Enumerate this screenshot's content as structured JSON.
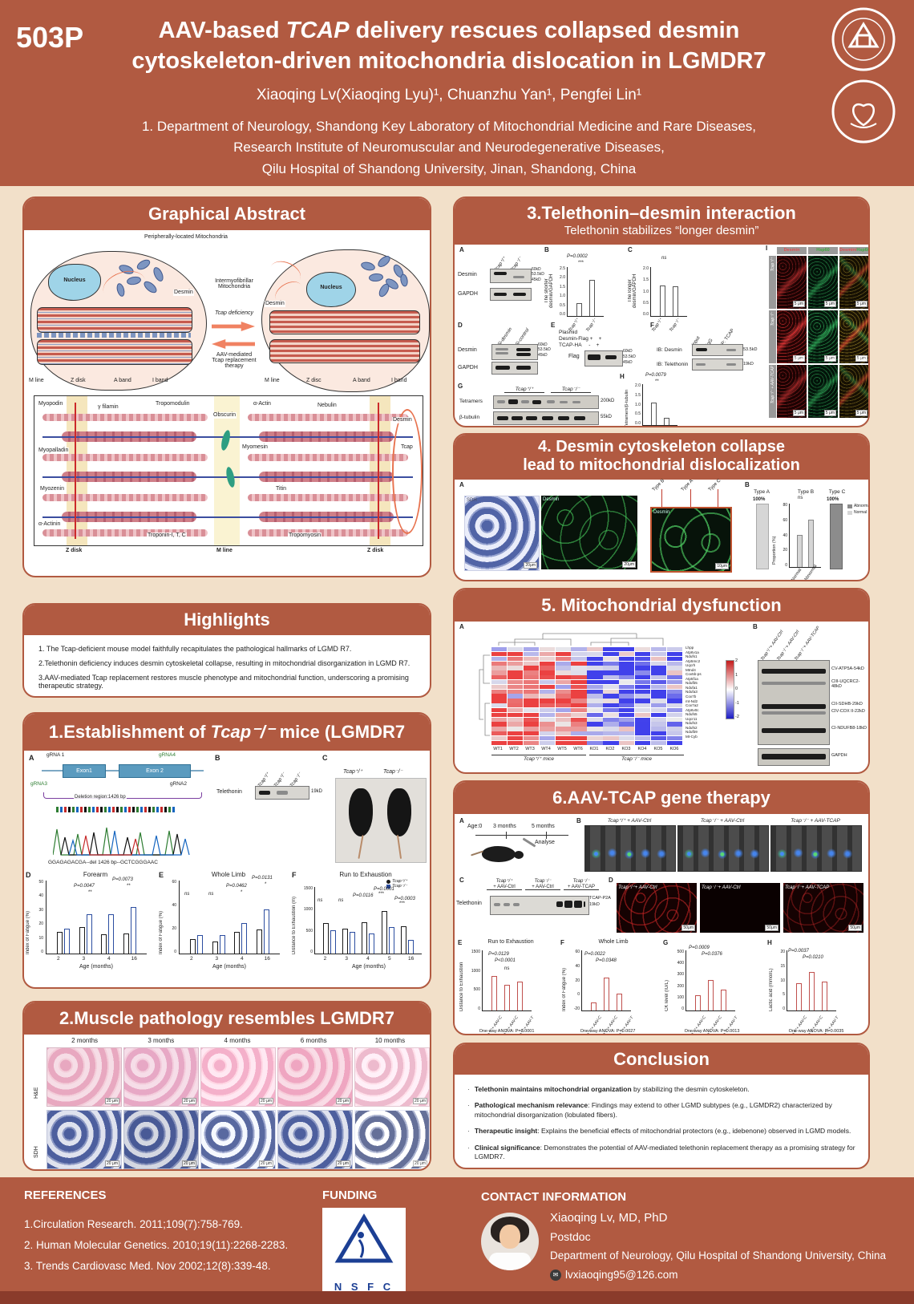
{
  "header": {
    "poster_id": "503P",
    "title_pre": "AAV-based ",
    "title_gene": "TCAP",
    "title_post": " delivery rescues collapsed desmin",
    "title_line2": "cytoskeleton-driven mitochondria dislocation in LGMDR7",
    "authors": "Xiaoqing Lv(Xiaoqing Lyu)¹, Chuanzhu Yan¹, Pengfei Lin¹",
    "affil1": "1. Department of Neurology, Shandong Key Laboratory of Mitochondrial Medicine and Rare Diseases,",
    "affil2": "Research Institute of Neuromuscular and Neurodegenerative Diseases,",
    "affil3": "Qilu Hospital of Shandong University, Jinan, Shandong, China"
  },
  "colors": {
    "accent": "#b15a41",
    "page_bg": "#f2e0c9",
    "wt_series": "#1a1a1a",
    "ko_series": "#2b4da0",
    "therapy_red": "#c0504d"
  },
  "ga": {
    "title": "Graphical Abstract",
    "peripheral": "Peripherally-located Mitochondria",
    "nucleus_left": "Nucleus",
    "desmin_left": "Desmin",
    "intermyo": "Intermyofibrillar\nMitochondria",
    "arrow_right": "Tcap deficiency",
    "arrow_left": "AAV-mediated\nTcap replacement\ntherapy",
    "mline_l": "M line",
    "zdisk_l": "Z disk",
    "aband_l": "A band",
    "iband_l": "I band",
    "desmin_r": "Desmin",
    "nucleus_r": "Nucleus",
    "mline_r": "M line",
    "zdisc_r": "Z disc",
    "aband_r": "A band",
    "iband_r": "I band",
    "sarc": {
      "myopodin": "Myopodin",
      "gfilamin": "γ filamin",
      "tropomodulin": "Tropomodulin",
      "obscurin": "Obscurin",
      "aactin": "α-Actin",
      "nebulin": "Nebulin",
      "desmin": "Desmin",
      "tcap": "Tcap",
      "myopalladin": "Myopalladin",
      "myomesin": "Myomesin",
      "myozenin": "Myozenin",
      "titin": "Titin",
      "aactinin": "α-Actinin",
      "troponin": "Troponin-I, T, C",
      "tropomyosin": "Tropomyosin",
      "zdisk_left": "Z disk",
      "mline": "M line",
      "zdisk_right": "Z disk"
    }
  },
  "highlights": {
    "title": "Highlights",
    "items": [
      "1. The Tcap-deficient mouse model faithfully recapitulates the pathological hallmarks of LGMD R7.",
      "2.Telethonin deficiency induces desmin cytoskeletal collapse, resulting in mitochondrial disorganization in LGMD R7.",
      "3.AAV-mediated Tcap replacement restores muscle phenotype and mitochondrial function, underscoring a promising therapeutic strategy."
    ]
  },
  "s1": {
    "title_pre": "1.Establishment of ",
    "title_gene": "Tcap⁻/⁻",
    "title_post": " mice (LGMDR7 model)",
    "a": {
      "label": "A",
      "grna1": "gRNA 1",
      "grna4": "gRNA4",
      "grna3": "gRNA3",
      "grna2": "gRNA2",
      "exon1": "Exon1",
      "exon2": "Exon 2",
      "deletion": "Deletion region:1426 bp",
      "seq": "GGAGAGACGA--del 1426 bp--GCTCGGGAAC"
    },
    "b": {
      "label": "B",
      "protein": "Telethonin",
      "lanes": [
        "Tcap⁺/⁺",
        "Tcap⁺/⁻",
        "Tcap⁻/⁻"
      ],
      "kd": "19kD"
    },
    "c": {
      "label": "C",
      "left": "Tcap⁺/⁺",
      "right": "Tcap⁻/⁻"
    },
    "d": {
      "label": "D",
      "title": "Forearm",
      "ylabel": "Index of Fatigue (%)",
      "yticks": [
        "50",
        "40",
        "30",
        "20",
        "10",
        "0"
      ],
      "p1": "P=0.0047",
      "st1": "**",
      "p2": "P=0.0073",
      "st2": "**",
      "xticks": [
        "2",
        "3",
        "4",
        "16"
      ],
      "xlabel": "Age (months)",
      "chart": {
        "ymax": 50,
        "groups": [
          [
            15,
            17
          ],
          [
            18,
            27
          ],
          [
            13,
            27
          ],
          [
            14,
            32
          ]
        ],
        "colors": [
          "#1a1a1a",
          "#2b4da0"
        ]
      }
    },
    "e": {
      "label": "E",
      "title": "Whole Limb",
      "ylabel": "Index of Fatigue (%)",
      "yticks": [
        "60",
        "40",
        "20",
        "0"
      ],
      "ns1": "ns",
      "ns2": "ns",
      "p1": "P=0.0462",
      "st1": "*",
      "p2": "P=0.0131",
      "st2": "*",
      "xticks": [
        "2",
        "3",
        "4",
        "16"
      ],
      "xlabel": "Age (months)",
      "chart": {
        "ymax": 60,
        "groups": [
          [
            12,
            15
          ],
          [
            10,
            15
          ],
          [
            18,
            25
          ],
          [
            20,
            36
          ]
        ],
        "colors": [
          "#1a1a1a",
          "#2b4da0"
        ]
      }
    },
    "f": {
      "label": "F",
      "title": "Run to Exhaustion",
      "ylabel": "Distance to Exhaustion (m)",
      "yticks": [
        "1500",
        "1000",
        "500",
        "0"
      ],
      "legend1": "Tcap⁺/⁺",
      "legend2": "Tcap⁻/⁻",
      "sigs": [
        "ns",
        "ns",
        "P=0.0116",
        "P=0.0001",
        "P=0.0003"
      ],
      "stars": [
        "",
        "",
        "*",
        "***",
        "***"
      ],
      "xticks": [
        "2",
        "3",
        "4",
        "5",
        "16"
      ],
      "xlabel": "Age (months)",
      "chart": {
        "ymax": 1500,
        "groups": [
          [
            680,
            530
          ],
          [
            560,
            490
          ],
          [
            700,
            450
          ],
          [
            950,
            600
          ],
          [
            620,
            300
          ]
        ],
        "colors": [
          "#1a1a1a",
          "#2b4da0"
        ]
      }
    }
  },
  "s2": {
    "title": "2.Muscle pathology resembles LGMDR7",
    "cols": [
      "2 months",
      "3 months",
      "4 months",
      "6 months",
      "10 months"
    ],
    "row1": "H&E",
    "row2": "SDH",
    "scale": "20 μm"
  },
  "s3": {
    "title": "3.Telethonin–desmin interaction",
    "subtitle": "Telethonin stabilizes “longer desmin”",
    "wt": "Tcap⁺/⁺",
    "ko": "Tcap⁻/⁻",
    "a": {
      "label": "A",
      "row1": "Desmin",
      "row2": "GAPDH",
      "m1": "60kD",
      "m2": "53.5kD",
      "m3": "45kD"
    },
    "b": {
      "label": "B",
      "ylabel": "The shorter\ndesmin/GAPDH",
      "yticks": [
        "2.5",
        "2.0",
        "1.5",
        "1.0",
        "0.5",
        "0.0"
      ],
      "p": "P=0.0002",
      "stars": "***",
      "chart": {
        "ymax": 2.5,
        "values": [
          0.65,
          1.85
        ],
        "colors": [
          "#555",
          "#555"
        ]
      }
    },
    "c": {
      "label": "C",
      "ylabel": "The longer\ndesmin/GAPDH",
      "yticks": [
        "2.0",
        "1.5",
        "1.0",
        "0.5",
        "0.0"
      ],
      "p": "ns",
      "chart": {
        "ymax": 2.0,
        "values": [
          1.25,
          1.2
        ],
        "colors": [
          "#555",
          "#555"
        ]
      }
    },
    "d": {
      "label": "D",
      "lane1": "Si-desmin",
      "lane2": "Si-control",
      "row1": "Desmin",
      "row2": "GAPDH",
      "m1": "60kD",
      "m2": "53.5kD",
      "m3": "45kD"
    },
    "e": {
      "label": "E",
      "l1": "Plasmid",
      "l2": "Desmin-Flag +    +",
      "l3": "TCAP-HA     -    +",
      "protein": "Flag",
      "m1": "60kD",
      "m2": "53.5kD",
      "m3": "45kD"
    },
    "f": {
      "label": "F",
      "lane1": "Input",
      "lane2": "IgG",
      "lane3": "IP: TCAP",
      "r1": "IB: Desmin",
      "k1": "53.5kD",
      "r2": "IB: Telethonin",
      "k2": "19kD"
    },
    "g": {
      "label": "G",
      "row1": "Tetramers",
      "row2": "β-tubulin",
      "kd1": "200kD",
      "kd2": "55kD"
    },
    "h": {
      "label": "H",
      "ylabel": "Tetramers/β-tubulin",
      "yticks": [
        "2.0",
        "1.5",
        "1.0",
        "0.5",
        "0.0"
      ],
      "p": "P=0.0079",
      "stars": "**",
      "chart": {
        "ymax": 2.0,
        "values": [
          1.1,
          0.35
        ],
        "colors": [
          "#555",
          "#555"
        ]
      }
    },
    "i": {
      "label": "I",
      "col1": "Desmin",
      "col2": "Hsp60",
      "col3a": "Desmin/",
      "col3b": "Hsp60",
      "rows": [
        "Tcap⁺/⁺",
        "Tcap⁻/⁻",
        "Tcap⁻/⁻ + AAV-TCAP"
      ],
      "scale": "5 μm"
    }
  },
  "s4": {
    "title1": "4. Desmin cytoskeleton collapse",
    "title2": "lead to mitochondrial dislocalization",
    "a": {
      "label": "A",
      "img1": "SDH",
      "img2": "Desmin",
      "img3": "Desmin",
      "typeB": "Type B",
      "typeA": "Type A",
      "typeC": "Type C",
      "scale1": "20μm",
      "scale2": "20μm",
      "scale3": "10μm"
    },
    "b": {
      "label": "B",
      "typeA": "Type A",
      "typeB": "Type B",
      "typeC": "Type C",
      "pctA": "100%",
      "pctC": "100%",
      "ylabel": "Proportion (%)",
      "yticks": [
        "80",
        "60",
        "40",
        "20",
        "0"
      ],
      "p": "ns",
      "x1": "Normal",
      "x2": "Abnormal",
      "legend1": "Abnormal",
      "legend2": "Normal",
      "chart": {
        "ymax": 80,
        "values": [
          41,
          60
        ],
        "colors": [
          "#888",
          "#555"
        ],
        "fills": [
          "#d6d6d6",
          "#8c8c8c"
        ]
      }
    }
  },
  "s5": {
    "title": "5. Mitochondrial dysfunction",
    "a": {
      "label": "A",
      "genes": [
        "Lhpp",
        "Atp6v1a",
        "Ndufs1",
        "Atp5mc2",
        "Uqcrh",
        "Mtnd4",
        "Cox5b-ps",
        "Atp5f1a",
        "Ndufb5",
        "Ndufa1",
        "Ndufa3",
        "Cox7b",
        "mt-Nd2",
        "Cox7a2",
        "Atp6v0c",
        "Ndufs5",
        "Uqcr11",
        "Ndufs3",
        "Ndufs2",
        "Ndufb9",
        "Mt-Cyb"
      ],
      "cols": [
        "WT1",
        "WT2",
        "WT3",
        "WT4",
        "WT5",
        "WT6",
        "KO1",
        "KO2",
        "KO3",
        "KO4",
        "KO5",
        "KO6"
      ],
      "scale": [
        "2",
        "1",
        "0",
        "-1",
        "-2"
      ],
      "wt_group": "Tcap⁺/⁺ mice",
      "ko_group": "Tcap⁻/⁻ mice"
    },
    "b": {
      "label": "B",
      "lanes": [
        "Tcap⁺/⁺+ AAV-Ctrl",
        "Tcap⁻/⁻+ AAV-Ctrl",
        "Tcap⁻/⁻+ AAV-TCAP"
      ],
      "bands": [
        "CV-ATP5A-54kD",
        "CIII-UQCRC2-48kD",
        "CII-SDHB-29kD",
        "CIV-COX II-22kD",
        "CI-NDUFB8-18kD",
        "GAPDH"
      ]
    }
  },
  "s6": {
    "title": "6.AAV-TCAP gene therapy",
    "a": {
      "label": "A",
      "age": "Age:0",
      "m3": "3 months",
      "m5": "5 months",
      "analyse": "Analyse"
    },
    "b": {
      "label": "B",
      "lanes": [
        "Tcap⁺/⁺ + AAV-Ctrl",
        "Tcap⁻/⁻ + AAV-Ctrl",
        "Tcap⁻/⁻ + AAV-TCAP"
      ]
    },
    "c": {
      "label": "C",
      "lane1a": "Tcap⁺/⁺",
      "lane1b": "+ AAV-Ctrl",
      "lane2a": "Tcap⁻/⁻",
      "lane2b": "+ AAV-Ctrl",
      "lane3a": "Tcap⁻/⁻",
      "lane3b": "+ AAV-TCAP",
      "protein": "Telethonin",
      "band1": "TCAP-P2A",
      "band2": "19kD"
    },
    "d": {
      "label": "D",
      "lanes": [
        "Tcap⁺/⁺+ AAV-Ctrl",
        "Tcap⁻/⁻+ AAV-Ctrl",
        "Tcap⁻/⁻+ AAV-TCAP"
      ],
      "scale": "50μm"
    },
    "e": {
      "label": "E",
      "title": "Run to Exhaustion",
      "ylabel": "Distance to Exhaustion",
      "yticks": [
        "1500",
        "1000",
        "500",
        "0"
      ],
      "p1": "P=0.0129",
      "st1": "*",
      "p2": "P<0.0001",
      "st2": "****",
      "ns": "ns",
      "chart": {
        "ymax": 1500,
        "values": [
          870,
          640,
          730
        ],
        "colors": [
          "#c0504d",
          "#cd7b72",
          "#c9b29b"
        ]
      }
    },
    "f": {
      "label": "F",
      "title": "Whole Limb",
      "ylabel": "Index of Fatigue (%)",
      "yticks": [
        "60",
        "40",
        "20",
        "0",
        "-20"
      ],
      "p1": "P=0.0022",
      "st1": "**",
      "p2": "P=0.0348",
      "st2": "*",
      "chart": {
        "ymax": 60,
        "values": [
          8,
          33,
          17
        ],
        "colors": [
          "#c0504d",
          "#cd7b72",
          "#c9b29b"
        ]
      }
    },
    "g": {
      "label": "G",
      "ylabel": "CK level (IU/L)",
      "yticks": [
        "500",
        "400",
        "300",
        "200",
        "100",
        "0"
      ],
      "p1": "P=0.0009",
      "st1": "***",
      "p2": "P=0.0376",
      "st2": "*",
      "chart": {
        "ymax": 500,
        "values": [
          125,
          255,
          175
        ],
        "colors": [
          "#c0504d",
          "#cd7b72",
          "#c9b29b"
        ]
      }
    },
    "h": {
      "label": "H",
      "ylabel": "Lactic acid (mmol/L)",
      "yticks": [
        "20",
        "15",
        "10",
        "5",
        "0"
      ],
      "p1": "P=0.0037",
      "st1": "**",
      "p2": "P=0.0210",
      "st2": "*",
      "chart": {
        "ymax": 20,
        "values": [
          9,
          12.8,
          9.5
        ],
        "colors": [
          "#c0504d",
          "#cd7b72",
          "#c9b29b"
        ]
      }
    },
    "xticks": [
      "Tcap⁺/⁺+ AAV-C",
      "Tcap⁻/⁻+ AAV-C",
      "Tcap⁻/⁻+ AAV-T"
    ],
    "anova": [
      "One-way ANOVA: P=0.0001",
      "One-way ANOVA: P=0.0027",
      "One-way ANOVA: P=0.0013",
      "One-way ANOVA: P=0.0035"
    ]
  },
  "conclusion": {
    "title": "Conclusion",
    "items": [
      {
        "bold": "Telethonin maintains mitochondrial organization",
        "rest": " by stabilizing the desmin cytoskeleton."
      },
      {
        "bold": "Pathological mechanism relevance",
        "rest": ": Findings may extend to other LGMD subtypes (e.g., LGMDR2) characterized by mitochondrial disorganization (lobulated fibers)."
      },
      {
        "bold": "Therapeutic insight",
        "rest": ": Explains the beneficial effects of mitochondrial protectors (e.g., idebenone) observed in LGMD models."
      },
      {
        "bold": "Clinical significance",
        "rest": ": Demonstrates the potential of AAV-mediated telethonin replacement therapy as a promising strategy for LGMDR7."
      }
    ]
  },
  "footer": {
    "references_title": "REFERENCES",
    "references": [
      "1.Circulation Research. 2011;109(7):758-769.",
      "2. Human Molecular Genetics. 2010;19(11):2268-2283.",
      "3. Trends Cardiovasc Med. Nov 2002;12(8):339-48."
    ],
    "funding_title": "FUNDING",
    "funding_logo": "N S F C",
    "contact_title": "CONTACT INFORMATION",
    "name": "Xiaoqing Lv, MD, PhD",
    "role": "Postdoc",
    "dept": "Department of Neurology, Qilu Hospital of Shandong University, China",
    "email": "lvxiaoqing95@126.com"
  }
}
